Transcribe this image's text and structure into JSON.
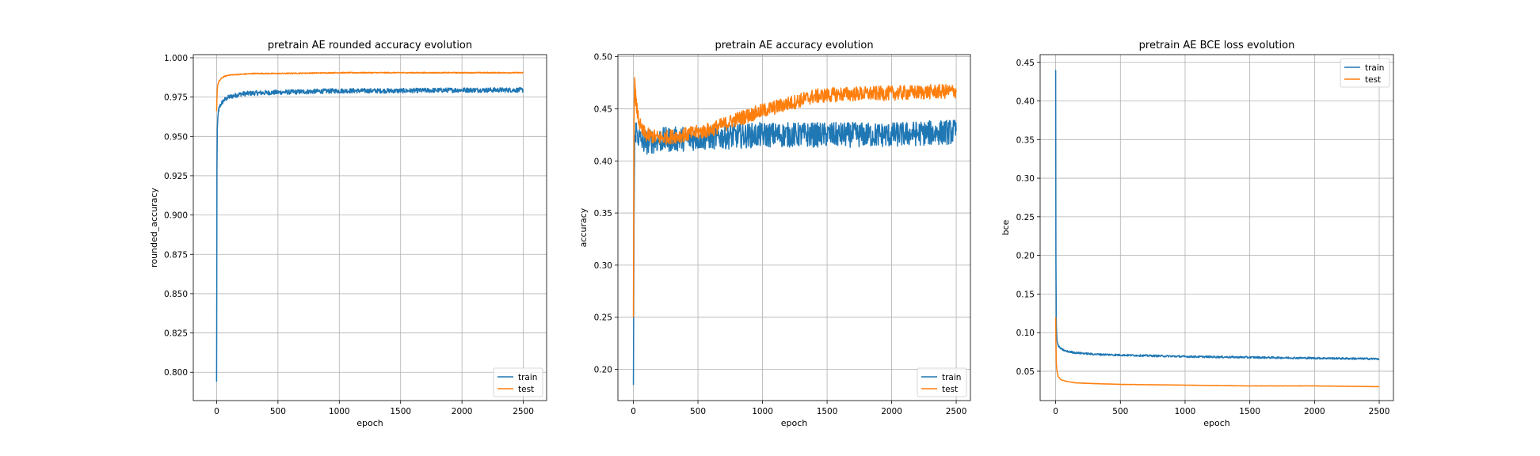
{
  "chart_data": [
    {
      "type": "line",
      "title": "pretrain AE rounded accuracy evolution",
      "xlabel": "epoch",
      "ylabel": "rounded_accuracy",
      "xlim": [
        -190,
        2690
      ],
      "ylim": [
        0.782,
        1.002
      ],
      "xticks": [
        0,
        500,
        1000,
        1500,
        2000,
        2500
      ],
      "yticks": [
        0.8,
        0.825,
        0.85,
        0.875,
        0.9,
        0.925,
        0.95,
        0.975,
        1.0
      ],
      "ytick_labels": [
        "0.800",
        "0.825",
        "0.850",
        "0.875",
        "0.900",
        "0.925",
        "0.950",
        "0.975",
        "1.000"
      ],
      "grid": true,
      "legend_position": "lower right",
      "series": [
        {
          "name": "train",
          "color": "#1f77b4",
          "x": [
            0,
            3,
            6,
            10,
            15,
            25,
            40,
            60,
            100,
            150,
            200,
            300,
            500,
            750,
            1000,
            1500,
            2000,
            2500
          ],
          "y": [
            0.794,
            0.93,
            0.955,
            0.962,
            0.966,
            0.969,
            0.971,
            0.973,
            0.975,
            0.976,
            0.977,
            0.9775,
            0.978,
            0.9785,
            0.979,
            0.979,
            0.9795,
            0.9795
          ],
          "noise": 0.0015
        },
        {
          "name": "test",
          "color": "#ff7f0e",
          "x": [
            0,
            3,
            6,
            10,
            20,
            40,
            60,
            100,
            200,
            300,
            500,
            1000,
            1500,
            2000,
            2500
          ],
          "y": [
            0.966,
            0.975,
            0.98,
            0.983,
            0.985,
            0.987,
            0.988,
            0.989,
            0.9895,
            0.99,
            0.99,
            0.9905,
            0.9905,
            0.9905,
            0.9905
          ],
          "noise": 0.0003
        }
      ]
    },
    {
      "type": "line",
      "title": "pretrain AE accuracy evolution",
      "xlabel": "epoch",
      "ylabel": "accuracy",
      "xlim": [
        -120,
        2610
      ],
      "ylim": [
        0.17,
        0.502
      ],
      "xticks": [
        0,
        500,
        1000,
        1500,
        2000,
        2500
      ],
      "yticks": [
        0.2,
        0.25,
        0.3,
        0.35,
        0.4,
        0.45,
        0.5
      ],
      "ytick_labels": [
        "0.20",
        "0.25",
        "0.30",
        "0.35",
        "0.40",
        "0.45",
        "0.50"
      ],
      "grid": true,
      "legend_position": "lower right",
      "series": [
        {
          "name": "train",
          "color": "#1f77b4",
          "x": [
            0,
            5,
            10,
            20,
            50,
            100,
            200,
            500,
            1000,
            1500,
            2000,
            2500
          ],
          "y": [
            0.185,
            0.35,
            0.42,
            0.43,
            0.42,
            0.418,
            0.42,
            0.422,
            0.425,
            0.425,
            0.425,
            0.428
          ],
          "noise": 0.012
        },
        {
          "name": "test",
          "color": "#ff7f0e",
          "x": [
            0,
            5,
            10,
            20,
            40,
            60,
            100,
            200,
            400,
            600,
            800,
            1000,
            1200,
            1400,
            1600,
            2000,
            2500
          ],
          "y": [
            0.25,
            0.44,
            0.48,
            0.455,
            0.44,
            0.43,
            0.425,
            0.422,
            0.425,
            0.43,
            0.44,
            0.448,
            0.455,
            0.462,
            0.464,
            0.465,
            0.467
          ],
          "noise": 0.007
        }
      ]
    },
    {
      "type": "line",
      "title": "pretrain AE BCE loss evolution",
      "xlabel": "epoch",
      "ylabel": "bce",
      "xlim": [
        -120,
        2610
      ],
      "ylim": [
        0.012,
        0.46
      ],
      "xticks": [
        0,
        500,
        1000,
        1500,
        2000,
        2500
      ],
      "yticks": [
        0.05,
        0.1,
        0.15,
        0.2,
        0.25,
        0.3,
        0.35,
        0.4,
        0.45
      ],
      "ytick_labels": [
        "0.05",
        "0.10",
        "0.15",
        "0.20",
        "0.25",
        "0.30",
        "0.35",
        "0.40",
        "0.45"
      ],
      "grid": true,
      "legend_position": "upper right",
      "series": [
        {
          "name": "train",
          "color": "#1f77b4",
          "x": [
            0,
            2,
            5,
            10,
            20,
            40,
            80,
            150,
            300,
            500,
            1000,
            1500,
            2000,
            2500
          ],
          "y": [
            0.44,
            0.2,
            0.11,
            0.09,
            0.083,
            0.079,
            0.076,
            0.074,
            0.072,
            0.071,
            0.069,
            0.068,
            0.067,
            0.066
          ],
          "noise": 0.0012
        },
        {
          "name": "test",
          "color": "#ff7f0e",
          "x": [
            0,
            2,
            5,
            10,
            20,
            40,
            80,
            150,
            300,
            500,
            1000,
            1500,
            2000,
            2500
          ],
          "y": [
            0.12,
            0.09,
            0.06,
            0.05,
            0.043,
            0.039,
            0.037,
            0.035,
            0.034,
            0.033,
            0.032,
            0.031,
            0.031,
            0.03
          ],
          "noise": 0.0002
        }
      ]
    }
  ]
}
